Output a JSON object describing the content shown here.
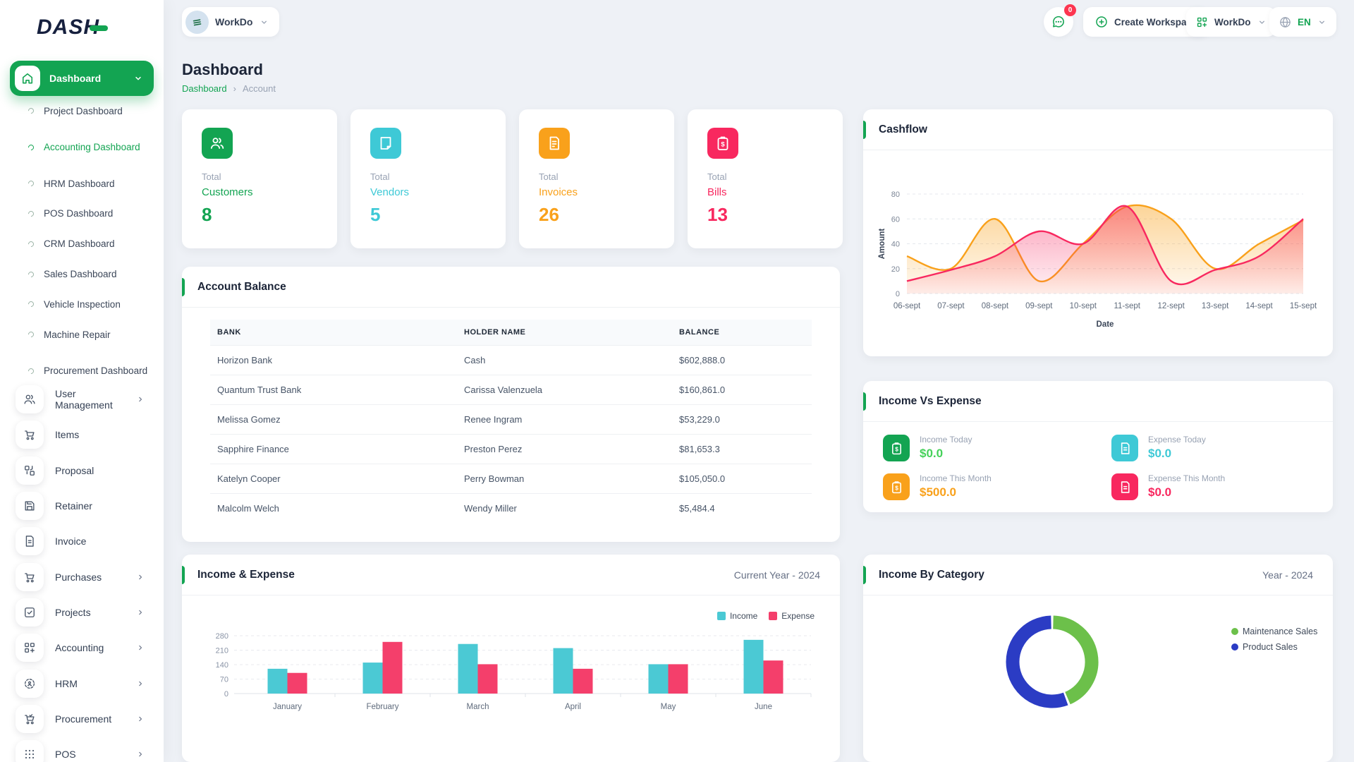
{
  "app": {
    "logo_text": "DASH"
  },
  "topbar": {
    "workspace_label": "WorkDo",
    "messages_badge": "0",
    "create_workspace_label": "Create Workspace",
    "workspace_menu_label": "WorkDo",
    "language_label": "EN"
  },
  "sidebar": {
    "active_item": "Dashboard",
    "dashboard_children": [
      {
        "label": "Project Dashboard",
        "active": false
      },
      {
        "label": "Accounting Dashboard",
        "active": true
      },
      {
        "label": "HRM Dashboard",
        "active": false
      },
      {
        "label": "POS Dashboard",
        "active": false
      },
      {
        "label": "CRM Dashboard",
        "active": false
      },
      {
        "label": "Sales Dashboard",
        "active": false
      },
      {
        "label": "Vehicle Inspection",
        "active": false
      },
      {
        "label": "Machine Repair",
        "active": false
      },
      {
        "label": "Procurement Dashboard",
        "active": false
      }
    ],
    "items": [
      {
        "label": "User Management",
        "icon": "users",
        "expandable": true
      },
      {
        "label": "Items",
        "icon": "cart",
        "expandable": false
      },
      {
        "label": "Proposal",
        "icon": "layout",
        "expandable": false
      },
      {
        "label": "Retainer",
        "icon": "save",
        "expandable": false
      },
      {
        "label": "Invoice",
        "icon": "file",
        "expandable": false
      },
      {
        "label": "Purchases",
        "icon": "cart",
        "expandable": true
      },
      {
        "label": "Projects",
        "icon": "check-square",
        "expandable": true
      },
      {
        "label": "Accounting",
        "icon": "grid-plus",
        "expandable": true
      },
      {
        "label": "HRM",
        "icon": "target",
        "expandable": true
      },
      {
        "label": "Procurement",
        "icon": "cart-check",
        "expandable": true
      },
      {
        "label": "POS",
        "icon": "dots-grid",
        "expandable": true
      }
    ]
  },
  "page": {
    "title": "Dashboard",
    "breadcrumb_home": "Dashboard",
    "breadcrumb_current": "Account"
  },
  "stat_cards": [
    {
      "prefix": "Total",
      "label": "Customers",
      "value": "8",
      "color": "#13a452",
      "icon": "users"
    },
    {
      "prefix": "Total",
      "label": "Vendors",
      "value": "5",
      "color": "#3ec9d6",
      "icon": "note"
    },
    {
      "prefix": "Total",
      "label": "Invoices",
      "value": "26",
      "color": "#f9a11b",
      "icon": "invoice"
    },
    {
      "prefix": "Total",
      "label": "Bills",
      "value": "13",
      "color": "#f8285f",
      "icon": "clipboard-dollar"
    }
  ],
  "panels": {
    "cashflow": {
      "title": "Cashflow"
    },
    "account_balance": {
      "title": "Account Balance",
      "columns": [
        "BANK",
        "HOLDER NAME",
        "BALANCE"
      ],
      "rows": [
        [
          "Horizon Bank",
          "Cash",
          "$602,888.0"
        ],
        [
          "Quantum Trust Bank",
          "Carissa Valenzuela",
          "$160,861.0"
        ],
        [
          "Melissa Gomez",
          "Renee Ingram",
          "$53,229.0"
        ],
        [
          "Sapphire Finance",
          "Preston Perez",
          "$81,653.3"
        ],
        [
          "Katelyn Cooper",
          "Perry Bowman",
          "$105,050.0"
        ],
        [
          "Malcolm Welch",
          "Wendy Miller",
          "$5,484.4"
        ]
      ]
    },
    "income_vs_expense": {
      "title": "Income Vs Expense",
      "tiles": [
        {
          "label": "Income Today",
          "value": "$0.0",
          "icon": "clipboard-dollar",
          "icon_color": "#13a452",
          "value_color": "#45d15a"
        },
        {
          "label": "Expense Today",
          "value": "$0.0",
          "icon": "file",
          "icon_color": "#3ec9d6",
          "value_color": "#3ec9d6"
        },
        {
          "label": "Income This Month",
          "value": "$500.0",
          "icon": "clipboard-dollar",
          "icon_color": "#f9a11b",
          "value_color": "#f9a11b"
        },
        {
          "label": "Expense This Month",
          "value": "$0.0",
          "icon": "file",
          "icon_color": "#f8285f",
          "value_color": "#f8285f"
        }
      ]
    },
    "income_expense": {
      "title": "Income & Expense",
      "right_label": "Current Year - 2024"
    },
    "income_by_category": {
      "title": "Income By Category",
      "right_label": "Year - 2024"
    }
  },
  "chart_data": [
    {
      "id": "cashflow",
      "type": "area",
      "x": [
        "06-sept",
        "07-sept",
        "08-sept",
        "09-sept",
        "10-sept",
        "11-sept",
        "12-sept",
        "13-sept",
        "14-sept",
        "15-sept"
      ],
      "series": [
        {
          "name": "cashflow-series-orange",
          "color": "#f9a11b",
          "values": [
            30,
            20,
            60,
            10,
            40,
            70,
            60,
            20,
            40,
            59
          ]
        },
        {
          "name": "cashflow-series-pink",
          "color": "#f8285f",
          "values": [
            10,
            19,
            30,
            50,
            40,
            70,
            10,
            19,
            30,
            60
          ]
        }
      ],
      "xlabel": "Date",
      "ylabel": "Amount",
      "ylim": [
        0,
        80
      ],
      "yticks": [
        0,
        20,
        40,
        60,
        80
      ],
      "grid": true
    },
    {
      "id": "income_expense",
      "type": "bar",
      "categories": [
        "January",
        "February",
        "March",
        "April",
        "May",
        "June"
      ],
      "series": [
        {
          "name": "Income",
          "color": "#4bc9d4",
          "values": [
            120,
            150,
            240,
            220,
            142,
            260
          ]
        },
        {
          "name": "Expense",
          "color": "#f43f6b",
          "values": [
            100,
            250,
            142,
            120,
            142,
            160
          ]
        }
      ],
      "ylim": [
        0,
        280
      ],
      "yticks": [
        0,
        70,
        140,
        210,
        280
      ],
      "grid": true,
      "legend_position": "top-right"
    },
    {
      "id": "income_by_category",
      "type": "donut",
      "slices": [
        {
          "label": "Maintenance Sales",
          "value": 44,
          "color": "#6cc04a"
        },
        {
          "label": "Product Sales",
          "value": 56,
          "color": "#2b3cc4"
        }
      ],
      "legend_position": "right"
    }
  ]
}
